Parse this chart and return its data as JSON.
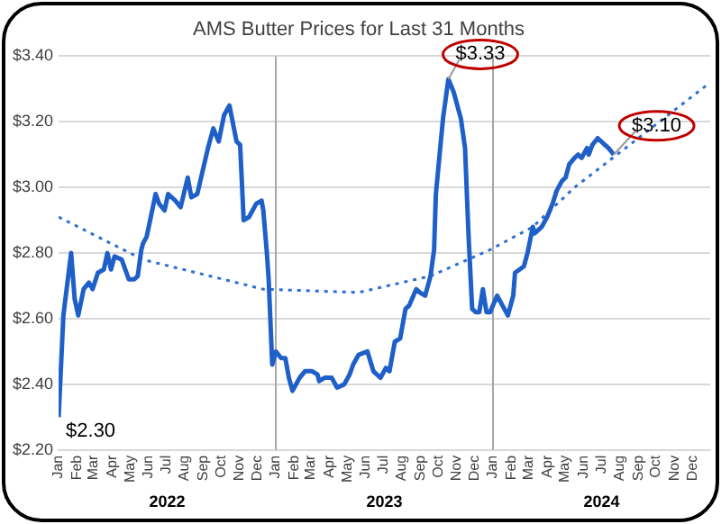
{
  "chart_data": {
    "type": "line",
    "title": "AMS Butter Prices for Last 31 Months",
    "x": [
      "2022-01-01",
      "2022-01-09",
      "2022-01-22",
      "2022-01-28",
      "2022-02-03",
      "2022-02-12",
      "2022-02-21",
      "2022-02-27",
      "2022-03-08",
      "2022-03-18",
      "2022-03-24",
      "2022-03-30",
      "2022-04-05",
      "2022-04-17",
      "2022-04-29",
      "2022-05-08",
      "2022-05-14",
      "2022-05-20",
      "2022-05-23",
      "2022-05-29",
      "2022-06-13",
      "2022-06-19",
      "2022-06-28",
      "2022-07-04",
      "2022-07-16",
      "2022-07-25",
      "2022-08-06",
      "2022-08-12",
      "2022-08-22",
      "2022-08-31",
      "2022-09-09",
      "2022-09-18",
      "2022-09-27",
      "2022-10-06",
      "2022-10-15",
      "2022-10-27",
      "2022-11-02",
      "2022-11-08",
      "2022-11-17",
      "2022-11-29",
      "2022-12-08",
      "2022-12-11",
      "2022-12-17",
      "2022-12-20",
      "2022-12-26",
      "2023-01-01",
      "2023-01-10",
      "2023-01-17",
      "2023-01-23",
      "2023-01-29",
      "2023-02-10",
      "2023-02-19",
      "2023-03-03",
      "2023-03-12",
      "2023-03-15",
      "2023-03-24",
      "2023-04-05",
      "2023-04-14",
      "2023-04-26",
      "2023-05-05",
      "2023-05-11",
      "2023-05-17",
      "2023-05-20",
      "2023-06-04",
      "2023-06-14",
      "2023-06-26",
      "2023-07-05",
      "2023-07-11",
      "2023-07-20",
      "2023-07-29",
      "2023-08-07",
      "2023-08-13",
      "2023-08-25",
      "2023-08-31",
      "2023-09-09",
      "2023-09-18",
      "2023-09-24",
      "2023-09-27",
      "2023-10-09",
      "2023-10-18",
      "2023-10-27",
      "2023-11-08",
      "2023-11-15",
      "2023-11-21",
      "2023-11-27",
      "2023-12-03",
      "2023-12-09",
      "2023-12-15",
      "2023-12-21",
      "2023-12-27",
      "2024-01-08",
      "2024-01-17",
      "2024-01-26",
      "2024-02-04",
      "2024-02-07",
      "2024-02-22",
      "2024-02-28",
      "2024-03-08",
      "2024-03-11",
      "2024-03-23",
      "2024-04-01",
      "2024-04-10",
      "2024-04-17",
      "2024-04-26",
      "2024-05-02",
      "2024-05-08",
      "2024-05-17",
      "2024-05-23",
      "2024-05-29",
      "2024-06-07",
      "2024-06-10",
      "2024-06-16",
      "2024-06-25",
      "2024-07-07",
      "2024-07-13",
      "2024-07-22"
    ],
    "series": [
      {
        "color": "#1f5fc8",
        "values": [
          2.3,
          2.61,
          2.8,
          2.66,
          2.61,
          2.69,
          2.71,
          2.69,
          2.74,
          2.75,
          2.8,
          2.75,
          2.79,
          2.78,
          2.72,
          2.72,
          2.73,
          2.81,
          2.83,
          2.85,
          2.98,
          2.95,
          2.93,
          2.98,
          2.96,
          2.94,
          3.03,
          2.97,
          2.98,
          3.05,
          3.12,
          3.18,
          3.14,
          3.22,
          3.25,
          3.14,
          3.13,
          2.9,
          2.91,
          2.95,
          2.96,
          2.93,
          2.8,
          2.72,
          2.46,
          2.5,
          2.48,
          2.48,
          2.42,
          2.38,
          2.42,
          2.44,
          2.44,
          2.43,
          2.41,
          2.42,
          2.42,
          2.39,
          2.4,
          2.43,
          2.46,
          2.48,
          2.49,
          2.5,
          2.44,
          2.42,
          2.45,
          2.44,
          2.53,
          2.54,
          2.63,
          2.64,
          2.69,
          2.68,
          2.67,
          2.73,
          2.81,
          2.98,
          3.21,
          3.33,
          3.29,
          3.21,
          3.12,
          2.85,
          2.63,
          2.62,
          2.62,
          2.69,
          2.62,
          2.62,
          2.67,
          2.64,
          2.61,
          2.67,
          2.74,
          2.76,
          2.8,
          2.88,
          2.86,
          2.88,
          2.91,
          2.95,
          2.99,
          3.02,
          3.03,
          3.07,
          3.09,
          3.1,
          3.09,
          3.12,
          3.1,
          3.13,
          3.15,
          3.13,
          3.12,
          3.1
        ],
        "value_labels": [
          "$2.30",
          null,
          null,
          null,
          null,
          null,
          null,
          null,
          null,
          null,
          null,
          null,
          null,
          null,
          null,
          null,
          null,
          null,
          null,
          null,
          null,
          null,
          null,
          null,
          null,
          null,
          null,
          null,
          null,
          null,
          null,
          null,
          null,
          null,
          null,
          null,
          null,
          null,
          null,
          null,
          null,
          null,
          null,
          null,
          null,
          null,
          null,
          null,
          null,
          null,
          null,
          null,
          null,
          null,
          null,
          null,
          null,
          null,
          null,
          null,
          null,
          null,
          null,
          null,
          null,
          null,
          null,
          null,
          null,
          null,
          null,
          null,
          null,
          null,
          null,
          null,
          null,
          null,
          null,
          "$3.33",
          null,
          null,
          null,
          null,
          null,
          null,
          null,
          null,
          null,
          null,
          null,
          null,
          null,
          null,
          null,
          null,
          null,
          null,
          null,
          null,
          null,
          null,
          null,
          null,
          null,
          null,
          null,
          null,
          null,
          null,
          null,
          null,
          null,
          null,
          null,
          "$3.10"
        ]
      },
      {
        "color": "#2f6fd0",
        "line_style": "dotted",
        "x": [
          "2022-01-01",
          "2022-05-23",
          "2022-12-11",
          "2023-05-20",
          "2023-09-18",
          "2023-12-27",
          "2024-03-08",
          "2024-05-17",
          "2024-08-25",
          "2024-12-31"
        ],
        "values": [
          2.91,
          2.78,
          2.69,
          2.68,
          2.73,
          2.81,
          2.88,
          3.0,
          3.14,
          3.32
        ]
      }
    ],
    "xlim": [
      "2022-01-01",
      "2024-12-31"
    ],
    "xticks": [
      {
        "value": "2022-01-01",
        "label": "Jan"
      },
      {
        "value": "2022-02-01",
        "label": "Feb"
      },
      {
        "value": "2022-03-01",
        "label": "Mar"
      },
      {
        "value": "2022-04-01",
        "label": "Apr"
      },
      {
        "value": "2022-05-01",
        "label": "May"
      },
      {
        "value": "2022-06-01",
        "label": "Jun"
      },
      {
        "value": "2022-07-01",
        "label": "Jul"
      },
      {
        "value": "2022-08-01",
        "label": "Aug"
      },
      {
        "value": "2022-09-01",
        "label": "Sep"
      },
      {
        "value": "2022-10-01",
        "label": "Oct"
      },
      {
        "value": "2022-11-01",
        "label": "Nov"
      },
      {
        "value": "2022-12-01",
        "label": "Dec"
      },
      {
        "value": "2023-01-01",
        "label": "Jan"
      },
      {
        "value": "2023-02-01",
        "label": "Feb"
      },
      {
        "value": "2023-03-01",
        "label": "Mar"
      },
      {
        "value": "2023-04-01",
        "label": "Apr"
      },
      {
        "value": "2023-05-01",
        "label": "May"
      },
      {
        "value": "2023-06-01",
        "label": "Jun"
      },
      {
        "value": "2023-07-01",
        "label": "Jul"
      },
      {
        "value": "2023-08-01",
        "label": "Aug"
      },
      {
        "value": "2023-09-01",
        "label": "Sep"
      },
      {
        "value": "2023-10-01",
        "label": "Oct"
      },
      {
        "value": "2023-11-01",
        "label": "Nov"
      },
      {
        "value": "2023-12-01",
        "label": "Dec"
      },
      {
        "value": "2024-01-01",
        "label": "Jan"
      },
      {
        "value": "2024-02-01",
        "label": "Feb"
      },
      {
        "value": "2024-03-01",
        "label": "Mar"
      },
      {
        "value": "2024-04-01",
        "label": "Apr"
      },
      {
        "value": "2024-05-01",
        "label": "May"
      },
      {
        "value": "2024-06-01",
        "label": "Jun"
      },
      {
        "value": "2024-07-01",
        "label": "Jul"
      },
      {
        "value": "2024-08-01",
        "label": "Aug"
      },
      {
        "value": "2024-09-01",
        "label": "Sep"
      },
      {
        "value": "2024-10-01",
        "label": "Oct"
      },
      {
        "value": "2024-11-01",
        "label": "Nov"
      },
      {
        "value": "2024-12-01",
        "label": "Dec"
      }
    ],
    "ylim": [
      2.2,
      3.4
    ],
    "yticks": [
      {
        "value": 2.2,
        "label": "$2.20"
      },
      {
        "value": 2.4,
        "label": "$2.40"
      },
      {
        "value": 2.6,
        "label": "$2.60"
      },
      {
        "value": 2.8,
        "label": "$2.80"
      },
      {
        "value": 3.0,
        "label": "$3.00"
      },
      {
        "value": 3.2,
        "label": "$3.20"
      },
      {
        "value": 3.4,
        "label": "$3.40"
      }
    ],
    "ref_lines": [
      {
        "axis": "x",
        "value": "2023-01-01",
        "color": "#a6a6a6"
      },
      {
        "axis": "x",
        "value": "2024-01-01",
        "color": "#a6a6a6"
      }
    ],
    "annotations": [
      "2022",
      "2023",
      "2024"
    ],
    "grid": "y",
    "legend": false,
    "marker": "none",
    "line_style": "solid"
  }
}
